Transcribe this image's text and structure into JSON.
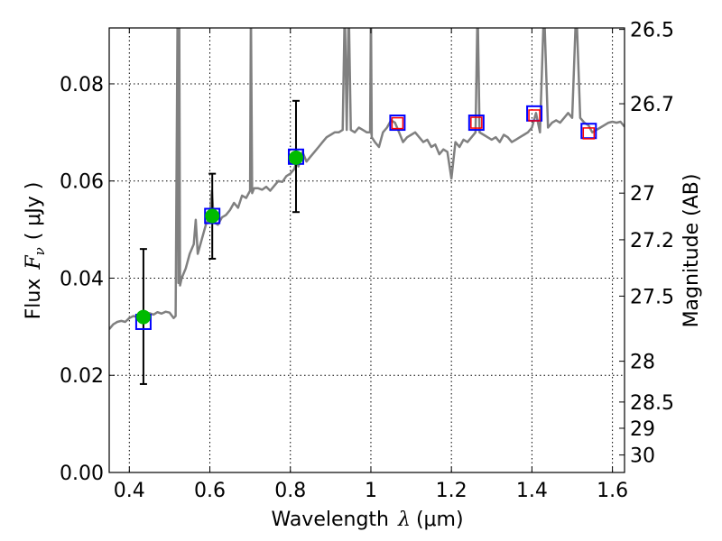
{
  "chart_data": {
    "type": "line",
    "xlabel": "Wavelength",
    "xlabel_symbol": "λ",
    "xlabel_unit": "(μm)",
    "ylabel": "Flux",
    "ylabel_symbol": "F",
    "ylabel_subscript": "ν",
    "ylabel_unit": "( μJy )",
    "y2label": "Magnitude (AB)",
    "xlim": [
      0.35,
      1.63
    ],
    "ylim": [
      0.0,
      0.0915
    ],
    "grid": true,
    "x_ticks": [
      0.4,
      0.6,
      0.8,
      1.0,
      1.2,
      1.4,
      1.6
    ],
    "x_tick_labels": [
      "0.4",
      "0.6",
      "0.8",
      "1",
      "1.2",
      "1.4",
      "1.6"
    ],
    "y_ticks": [
      0.0,
      0.02,
      0.04,
      0.06,
      0.08
    ],
    "y_tick_labels": [
      "0.00",
      "0.02",
      "0.04",
      "0.06",
      "0.08"
    ],
    "mag_ticks": [
      {
        "label": "26.5",
        "flux": 0.0912
      },
      {
        "label": "26.7",
        "flux": 0.0759
      },
      {
        "label": "27",
        "flux": 0.0575
      },
      {
        "label": "27.2",
        "flux": 0.0479
      },
      {
        "label": "27.5",
        "flux": 0.0363
      },
      {
        "label": "28",
        "flux": 0.0229
      },
      {
        "label": "28.5",
        "flux": 0.0145
      },
      {
        "label": "29",
        "flux": 0.0091
      },
      {
        "label": "30",
        "flux": 0.0036
      }
    ],
    "series": [
      {
        "name": "model_spectrum",
        "style": "line",
        "color": "#808080",
        "x": [
          0.35,
          0.36,
          0.37,
          0.38,
          0.39,
          0.4,
          0.41,
          0.42,
          0.43,
          0.44,
          0.45,
          0.46,
          0.47,
          0.48,
          0.49,
          0.5,
          0.51,
          0.515,
          0.52,
          0.522,
          0.524,
          0.526,
          0.53,
          0.54,
          0.55,
          0.56,
          0.565,
          0.57,
          0.58,
          0.59,
          0.6,
          0.605,
          0.61,
          0.62,
          0.63,
          0.64,
          0.65,
          0.66,
          0.67,
          0.68,
          0.69,
          0.7,
          0.702,
          0.705,
          0.71,
          0.72,
          0.73,
          0.74,
          0.75,
          0.76,
          0.77,
          0.78,
          0.79,
          0.8,
          0.81,
          0.815,
          0.82,
          0.83,
          0.84,
          0.85,
          0.86,
          0.87,
          0.88,
          0.89,
          0.9,
          0.91,
          0.92,
          0.93,
          0.935,
          0.94,
          0.945,
          0.95,
          0.96,
          0.97,
          0.98,
          0.99,
          0.998,
          1.0,
          1.002,
          1.01,
          1.02,
          1.03,
          1.04,
          1.05,
          1.06,
          1.07,
          1.08,
          1.09,
          1.1,
          1.11,
          1.12,
          1.13,
          1.14,
          1.15,
          1.16,
          1.17,
          1.18,
          1.19,
          1.2,
          1.21,
          1.22,
          1.23,
          1.24,
          1.25,
          1.26,
          1.265,
          1.27,
          1.28,
          1.29,
          1.3,
          1.31,
          1.32,
          1.33,
          1.34,
          1.35,
          1.36,
          1.37,
          1.38,
          1.39,
          1.4,
          1.41,
          1.42,
          1.43,
          1.44,
          1.45,
          1.46,
          1.47,
          1.48,
          1.49,
          1.5,
          1.51,
          1.52,
          1.53,
          1.54,
          1.55,
          1.56,
          1.57,
          1.58,
          1.59,
          1.6,
          1.61,
          1.62,
          1.63
        ],
        "y": [
          0.0295,
          0.0305,
          0.031,
          0.0312,
          0.031,
          0.0318,
          0.0322,
          0.032,
          0.0324,
          0.0326,
          0.0328,
          0.0325,
          0.033,
          0.0327,
          0.0331,
          0.0329,
          0.0318,
          0.0322,
          0.096,
          0.039,
          0.096,
          0.0385,
          0.04,
          0.042,
          0.045,
          0.047,
          0.052,
          0.045,
          0.048,
          0.051,
          0.053,
          0.058,
          0.0515,
          0.051,
          0.0525,
          0.053,
          0.054,
          0.0555,
          0.0545,
          0.057,
          0.0565,
          0.058,
          0.096,
          0.0575,
          0.0585,
          0.0585,
          0.0582,
          0.0588,
          0.058,
          0.059,
          0.06,
          0.0598,
          0.061,
          0.0615,
          0.0625,
          0.064,
          0.063,
          0.066,
          0.064,
          0.065,
          0.066,
          0.067,
          0.068,
          0.069,
          0.0695,
          0.07,
          0.07,
          0.0705,
          0.096,
          0.0705,
          0.096,
          0.0705,
          0.07,
          0.071,
          0.0705,
          0.07,
          0.07,
          0.096,
          0.069,
          0.068,
          0.067,
          0.07,
          0.071,
          0.0725,
          0.072,
          0.07,
          0.068,
          0.069,
          0.0695,
          0.07,
          0.069,
          0.068,
          0.0685,
          0.067,
          0.0675,
          0.0655,
          0.0665,
          0.066,
          0.0605,
          0.068,
          0.067,
          0.0685,
          0.068,
          0.069,
          0.07,
          0.096,
          0.07,
          0.0695,
          0.069,
          0.0685,
          0.069,
          0.068,
          0.0695,
          0.069,
          0.068,
          0.0685,
          0.069,
          0.0695,
          0.07,
          0.071,
          0.074,
          0.07,
          0.096,
          0.071,
          0.072,
          0.0725,
          0.072,
          0.073,
          0.074,
          0.073,
          0.096,
          0.073,
          0.072,
          0.0715,
          0.07,
          0.0705,
          0.071,
          0.0715,
          0.072,
          0.0722,
          0.072,
          0.0722,
          0.0712
        ]
      },
      {
        "name": "observed_photometry",
        "style": "markers",
        "marker": "circle",
        "color": "#00bb00",
        "x": [
          0.435,
          0.606,
          0.814
        ],
        "y": [
          0.032,
          0.0528,
          0.0648
        ],
        "yerr_low": [
          0.0138,
          0.0088,
          0.0112
        ],
        "yerr_high": [
          0.014,
          0.0087,
          0.0117
        ]
      },
      {
        "name": "model_photometry",
        "style": "markers",
        "marker": "square",
        "color": "#0000ff",
        "x": [
          0.435,
          0.606,
          0.814,
          1.066,
          1.262,
          1.406,
          1.541
        ],
        "y": [
          0.031,
          0.0528,
          0.065,
          0.072,
          0.072,
          0.0739,
          0.0703
        ]
      },
      {
        "name": "upper_limits",
        "style": "markers",
        "marker": "square",
        "color": "#ff0000",
        "x": [
          1.066,
          1.262,
          1.406,
          1.541
        ],
        "y": [
          0.0719,
          0.072,
          0.0735,
          0.0698
        ]
      }
    ]
  }
}
